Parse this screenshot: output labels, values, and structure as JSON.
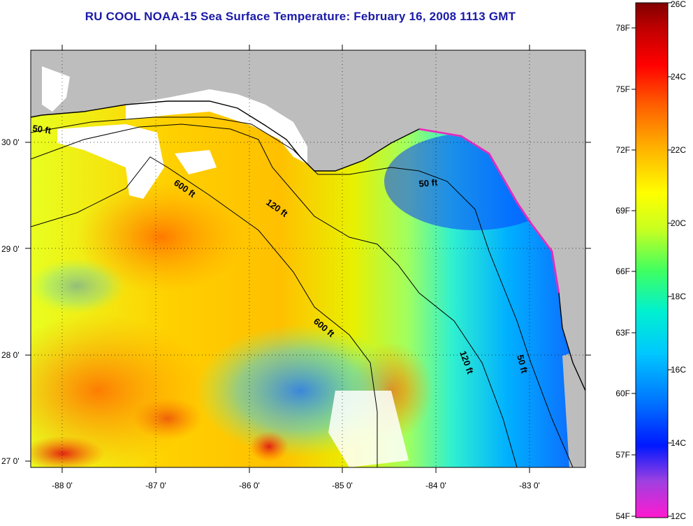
{
  "title": "RU COOL  NOAA-15  Sea Surface Temperature:  February 16, 2008 1113 GMT",
  "map": {
    "lat_labels": [
      "30 0'",
      "29 0'",
      "28 0'",
      "27 0'"
    ],
    "lon_labels": [
      "-88 0'",
      "-87 0'",
      "-86 0'",
      "-85 0'",
      "-84 0'",
      "-83 0'"
    ],
    "depth_contours": [
      "50 ft",
      "600 ft",
      "120 ft",
      "50 ft",
      "600 ft",
      "120 ft",
      "50 ft"
    ],
    "colors": {
      "land": "#bdbdbd",
      "cloud": "#ffffff",
      "coastline": "#000000"
    }
  },
  "colorbar": {
    "fahrenheit_labels": [
      "78F",
      "75F",
      "72F",
      "69F",
      "66F",
      "63F",
      "60F",
      "57F",
      "54F"
    ],
    "celsius_labels": [
      "26C",
      "24C",
      "22C",
      "20C",
      "18C",
      "16C",
      "14C",
      "12C"
    ],
    "range_c": [
      12,
      26
    ],
    "gradient": [
      "#ff1ad0",
      "#7a2fe0",
      "#0018ff",
      "#0070ff",
      "#00c8ff",
      "#00f0d0",
      "#40ff60",
      "#c8ff20",
      "#ffff00",
      "#ffb000",
      "#ff6000",
      "#ff0000",
      "#c00000",
      "#800000"
    ]
  }
}
